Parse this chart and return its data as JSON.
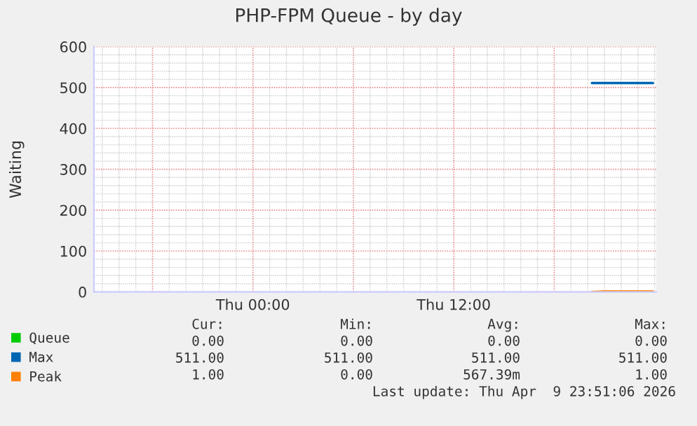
{
  "chart_data": {
    "type": "line",
    "title": "PHP-FPM Queue - by day",
    "ylabel": "Waiting",
    "x": [
      "2026-04-09T20:15",
      "2026-04-09T21:00",
      "2026-04-09T22:00",
      "2026-04-09T23:00",
      "2026-04-09T23:54"
    ],
    "series": [
      {
        "name": "Queue",
        "color": "#00cc00",
        "values": [
          null,
          null,
          null,
          null,
          null
        ]
      },
      {
        "name": "Max",
        "color": "#0066b3",
        "values": [
          511,
          511,
          511,
          511,
          511
        ]
      },
      {
        "name": "Peak",
        "color": "#ff8000",
        "values": [
          0,
          1,
          1,
          1,
          1
        ]
      }
    ],
    "xlim": [
      "2026-04-08T14:30",
      "2026-04-10T00:06"
    ],
    "xticks": [
      {
        "value": "2026-04-08T18:00",
        "label": null
      },
      {
        "value": "2026-04-09T00:00",
        "label": "Thu 00:00"
      },
      {
        "value": "2026-04-09T06:00",
        "label": null
      },
      {
        "value": "2026-04-09T12:00",
        "label": "Thu 12:00"
      },
      {
        "value": "2026-04-09T18:00",
        "label": null
      }
    ],
    "ylim": [
      0,
      600
    ],
    "yticks": [
      0,
      100,
      200,
      300,
      400,
      500,
      600
    ],
    "grid": true,
    "legend": "bottom",
    "annotations": [
      "Cur:",
      "Min:",
      "Avg:",
      "Max:",
      "0.00",
      "0.00",
      "0.00",
      "0.00",
      "511.00",
      "511.00",
      "511.00",
      "511.00",
      "1.00",
      "0.00",
      "567.39m",
      "1.00",
      "Last update: Thu Apr  9 23:51:06 2026"
    ]
  }
}
